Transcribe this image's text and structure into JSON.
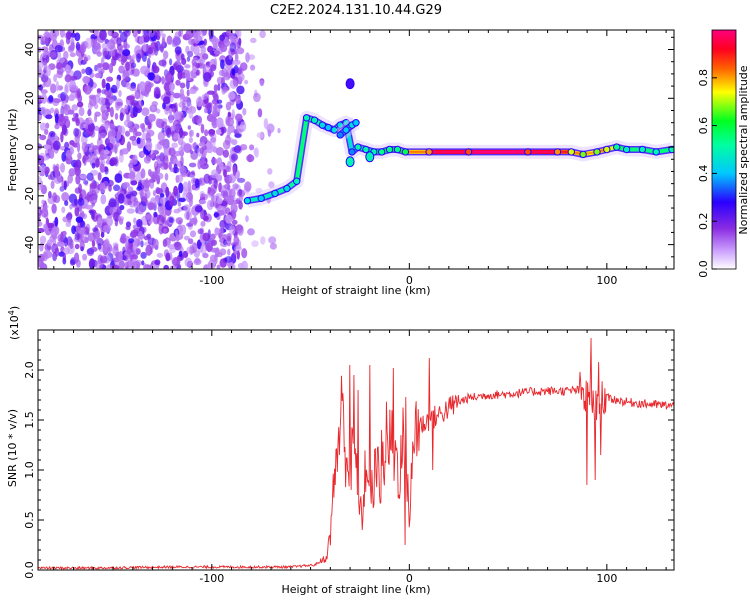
{
  "chart_data": [
    {
      "type": "heatmap",
      "title": "C2E2.2024.131.10.44.G29",
      "xlabel": "Height of straight line (km)",
      "ylabel": "Frequency (Hz)",
      "xlim": [
        -188,
        134
      ],
      "ylim": [
        -50,
        48
      ],
      "xticks": [
        -100,
        0,
        100
      ],
      "xtick_labels": [
        "-100",
        "0",
        "100"
      ],
      "yticks": [
        -40,
        -20,
        0,
        20,
        40
      ],
      "ytick_labels": [
        "-40",
        "-20",
        "0",
        "20",
        "40"
      ],
      "colorbar": {
        "label": "Normalized spectral amplitude",
        "range": [
          0,
          1
        ],
        "ticks": [
          0.0,
          0.2,
          0.4,
          0.6,
          0.8
        ],
        "tick_labels": [
          "0.0",
          "0.2",
          "0.4",
          "0.6",
          "0.8"
        ],
        "colors": [
          "#ffffff",
          "#8a2be2",
          "#3a00ff",
          "#00e5ff",
          "#00ff40",
          "#ffff00",
          "#ff3000",
          "#ff0070"
        ]
      },
      "noise_region": {
        "x": [
          -188,
          -85
        ],
        "y": [
          -50,
          48
        ],
        "level": 0.2
      },
      "ridge": {
        "x": [
          -82,
          -75,
          -68,
          -62,
          -57,
          -52,
          -48,
          -44,
          -41,
          -38,
          -35,
          -32,
          -29,
          -26,
          -22,
          -18,
          -14,
          -10,
          -6,
          -2,
          10,
          30,
          60,
          75,
          82,
          88,
          95,
          100,
          105,
          110,
          118,
          125,
          133
        ],
        "freq": [
          -22,
          -21,
          -19,
          -17,
          -14,
          12,
          11,
          9,
          8,
          7,
          9,
          10,
          -2,
          0,
          -1,
          -2,
          -2,
          -1,
          -1,
          -2,
          -2,
          -2,
          -2,
          -2,
          -2,
          -3,
          -2,
          -1,
          0,
          -1,
          -1,
          -2,
          -1
        ],
        "amplitude": [
          0.5,
          0.45,
          0.5,
          0.5,
          0.55,
          0.55,
          0.55,
          0.5,
          0.45,
          0.5,
          0.5,
          0.5,
          0.4,
          0.55,
          0.55,
          0.55,
          0.6,
          0.6,
          0.6,
          0.65,
          0.9,
          0.95,
          0.95,
          0.9,
          0.8,
          0.75,
          0.75,
          0.8,
          0.6,
          0.55,
          0.55,
          0.55,
          0.55
        ]
      },
      "secondary_ridge": {
        "x": [
          -35,
          -32,
          -29,
          -27
        ],
        "freq": [
          5,
          7,
          9,
          10
        ],
        "amplitude": [
          0.4,
          0.45,
          0.5,
          0.45
        ]
      },
      "blobs": [
        {
          "x": -30,
          "freq": 26,
          "amplitude": 0.25
        },
        {
          "x": -30,
          "freq": -6,
          "amplitude": 0.5
        },
        {
          "x": -20,
          "freq": -4,
          "amplitude": 0.5
        }
      ]
    },
    {
      "type": "line",
      "title": "",
      "xlabel": "Height of straight line (km)",
      "ylabel": "SNR (10 * v/v)",
      "scale_label": "(x10",
      "scale_exponent": "4",
      "scale_close": ")",
      "xlim": [
        -188,
        134
      ],
      "ylim": [
        0,
        2.4
      ],
      "xticks": [
        -100,
        0,
        100
      ],
      "xtick_labels": [
        "-100",
        "0",
        "100"
      ],
      "yticks": [
        0,
        0.5,
        1.0,
        1.5,
        2.0
      ],
      "ytick_labels": [
        "0.0",
        "0.5",
        "1.0",
        "1.5",
        "2.0"
      ],
      "color": "#ff0000",
      "series": [
        {
          "name": "SNR",
          "x": [
            -188,
            -160,
            -120,
            -90,
            -60,
            -48,
            -42,
            -40,
            -38,
            -36,
            -34,
            -32,
            -30,
            -28,
            -26,
            -24,
            -22,
            -20,
            -18,
            -16,
            -14,
            -12,
            -10,
            -8,
            -5,
            -2,
            0,
            3,
            6,
            10,
            15,
            20,
            25,
            30,
            40,
            50,
            60,
            70,
            80,
            85,
            88,
            90,
            92,
            94,
            96,
            100,
            105,
            110,
            120,
            127,
            134
          ],
          "y": [
            0.02,
            0.02,
            0.03,
            0.03,
            0.03,
            0.05,
            0.12,
            0.35,
            0.9,
            1.3,
            1.6,
            1.2,
            0.9,
            1.3,
            0.7,
            0.5,
            1.1,
            0.6,
            0.9,
            1.0,
            0.9,
            1.25,
            1.3,
            1.2,
            1.0,
            1.4,
            0.5,
            1.5,
            1.45,
            1.5,
            1.55,
            1.62,
            1.68,
            1.72,
            1.75,
            1.76,
            1.78,
            1.79,
            1.79,
            1.8,
            1.75,
            1.7,
            1.75,
            1.65,
            1.78,
            1.72,
            1.7,
            1.68,
            1.66,
            1.65,
            1.64
          ],
          "spikes": [
            {
              "x": -30,
              "y": 2.05
            },
            {
              "x": -28,
              "y": 1.95
            },
            {
              "x": -26,
              "y": 1.8
            },
            {
              "x": -24,
              "y": 0.4
            },
            {
              "x": -20,
              "y": 2.05
            },
            {
              "x": -14,
              "y": 1.4
            },
            {
              "x": -8,
              "y": 2.02
            },
            {
              "x": -2,
              "y": 0.25
            },
            {
              "x": 10,
              "y": 2.12
            },
            {
              "x": 12,
              "y": 1.0
            },
            {
              "x": 90,
              "y": 0.85
            },
            {
              "x": 92,
              "y": 2.32
            },
            {
              "x": 94,
              "y": 0.9
            },
            {
              "x": 96,
              "y": 2.08
            },
            {
              "x": 97,
              "y": 1.15
            }
          ]
        }
      ]
    }
  ]
}
